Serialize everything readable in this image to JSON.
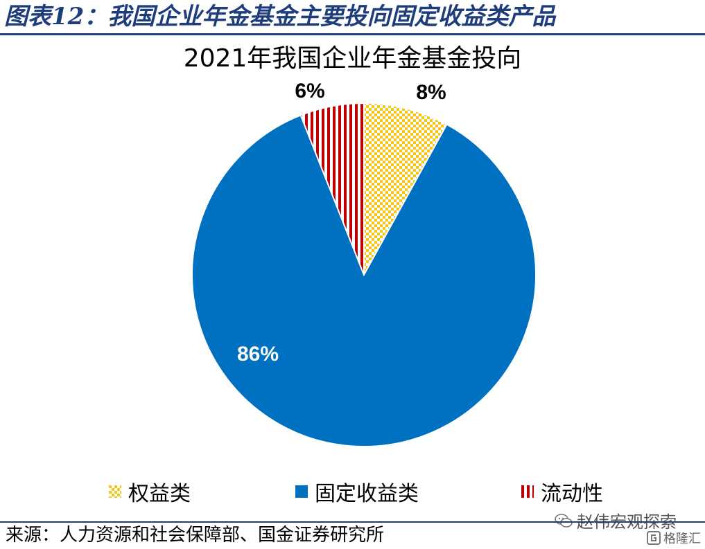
{
  "header": {
    "title": "图表12：我国企业年金基金主要投向固定收益类产品"
  },
  "chart_data": {
    "type": "pie",
    "title": "2021年我国企业年金基金投向",
    "slices": [
      {
        "label": "权益类",
        "value": 8,
        "display": "8%",
        "color": "#f5c518",
        "pattern": "checker"
      },
      {
        "label": "固定收益类",
        "value": 86,
        "display": "86%",
        "color": "#0070c0",
        "pattern": "solid"
      },
      {
        "label": "流动性",
        "value": 6,
        "display": "6%",
        "color": "#c00000",
        "pattern": "vstripes"
      }
    ],
    "legend_position": "bottom",
    "start_angle_deg": 0,
    "direction": "clockwise"
  },
  "source": "来源：人力资源和社会保障部、国金证券研究所",
  "watermark": {
    "text": "赵伟宏观探索",
    "icon": "wechat-icon"
  },
  "logo": {
    "text": "格隆汇",
    "icon": "logo-icon"
  }
}
